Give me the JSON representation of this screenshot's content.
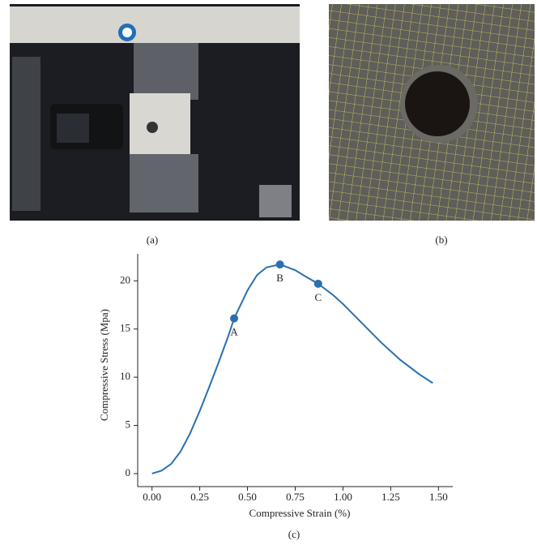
{
  "panels": [
    {
      "caption": "(a)"
    },
    {
      "caption": "(b)"
    }
  ],
  "chart_data": {
    "type": "line",
    "caption": "(c)",
    "x_label": "Compressive Strain (%)",
    "y_label": "Compressive Stress (Mpa)",
    "series": [
      {
        "color": "#2a6fb0",
        "x": [
          0,
          0.05,
          0.1,
          0.15,
          0.2,
          0.25,
          0.3,
          0.35,
          0.4,
          0.43,
          0.5,
          0.55,
          0.6,
          0.67,
          0.75,
          0.8,
          0.87,
          0.95,
          1.0,
          1.1,
          1.2,
          1.3,
          1.4,
          1.47
        ],
        "y": [
          0,
          0.3,
          1.0,
          2.3,
          4.2,
          6.5,
          9.0,
          11.6,
          14.3,
          16.1,
          19.0,
          20.6,
          21.4,
          21.7,
          21.1,
          20.5,
          19.7,
          18.5,
          17.6,
          15.6,
          13.6,
          11.8,
          10.3,
          9.4
        ]
      }
    ],
    "points": {
      "labels": [
        "A",
        "B",
        "C"
      ],
      "x": [
        0.43,
        0.67,
        0.87
      ],
      "y": [
        16.1,
        21.7,
        19.7
      ]
    },
    "xlim": [
      -0.075,
      1.575
    ],
    "ylim": [
      -1.35,
      22.8
    ],
    "xticks": [
      {
        "value": 0,
        "label": "0.00"
      },
      {
        "value": 0.25,
        "label": "0.25"
      },
      {
        "value": 0.5,
        "label": "0.50"
      },
      {
        "value": 0.75,
        "label": "0.75"
      },
      {
        "value": 1,
        "label": "1.00"
      },
      {
        "value": 1.25,
        "label": "1.25"
      },
      {
        "value": 1.5,
        "label": "1.50"
      }
    ],
    "yticks": [
      0,
      5,
      10,
      15,
      20
    ]
  }
}
